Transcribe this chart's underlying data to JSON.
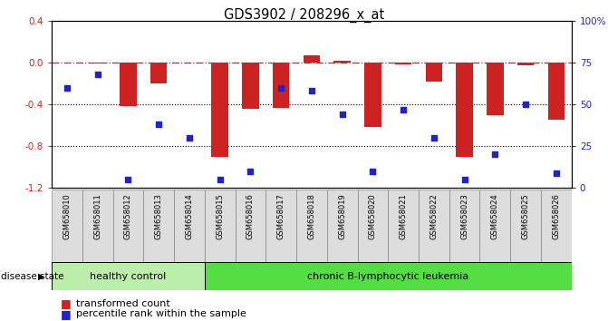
{
  "title": "GDS3902 / 208296_x_at",
  "samples": [
    "GSM658010",
    "GSM658011",
    "GSM658012",
    "GSM658013",
    "GSM658014",
    "GSM658015",
    "GSM658016",
    "GSM658017",
    "GSM658018",
    "GSM658019",
    "GSM658020",
    "GSM658021",
    "GSM658022",
    "GSM658023",
    "GSM658024",
    "GSM658025",
    "GSM658026"
  ],
  "bar_values": [
    0.0,
    -0.01,
    -0.42,
    -0.2,
    0.0,
    -0.9,
    -0.44,
    -0.43,
    0.07,
    0.02,
    -0.62,
    -0.02,
    -0.18,
    -0.9,
    -0.5,
    -0.03,
    -0.55
  ],
  "percentile_values": [
    60,
    68,
    5,
    38,
    30,
    5,
    10,
    60,
    58,
    44,
    10,
    47,
    30,
    5,
    20,
    50,
    9
  ],
  "ylim_left": [
    -1.2,
    0.4
  ],
  "ylim_right": [
    0,
    100
  ],
  "yticks_left": [
    0.4,
    0.0,
    -0.4,
    -0.8,
    -1.2
  ],
  "yticks_right": [
    100,
    75,
    50,
    25,
    0
  ],
  "ytick_right_labels": [
    "100%",
    "75",
    "50",
    "25",
    "0"
  ],
  "hline_y": 0.0,
  "dotted_lines": [
    -0.4,
    -0.8
  ],
  "healthy_count": 5,
  "leukemia_count": 12,
  "healthy_label": "healthy control",
  "leukemia_label": "chronic B-lymphocytic leukemia",
  "disease_state_label": "disease state",
  "bar_color": "#CC2222",
  "square_color": "#2222CC",
  "healthy_bg": "#BBEEAA",
  "leukemia_bg": "#55DD44",
  "sample_box_bg": "#DDDDDD",
  "bar_width": 0.55
}
